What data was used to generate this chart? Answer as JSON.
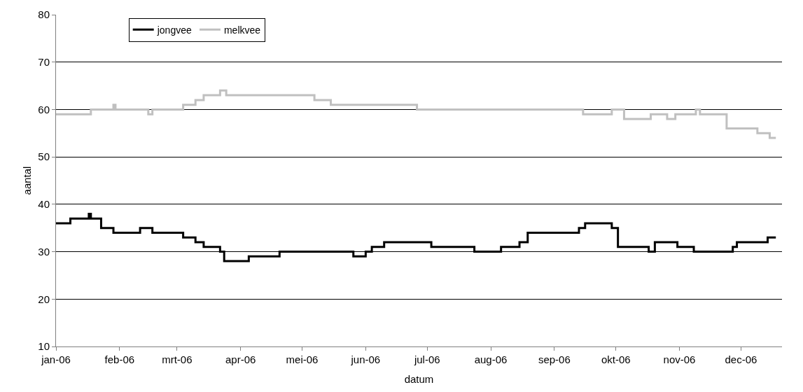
{
  "chart_data": {
    "type": "step",
    "xlabel": "datum",
    "ylabel": "aantal",
    "xlim": [
      "2006-01-01",
      "2006-12-21"
    ],
    "xticks": [
      {
        "value": "2006-01-01",
        "label": "jan-06"
      },
      {
        "value": "2006-02-01",
        "label": "feb-06"
      },
      {
        "value": "2006-03-01",
        "label": "mrt-06"
      },
      {
        "value": "2006-04-01",
        "label": "apr-06"
      },
      {
        "value": "2006-05-01",
        "label": "mei-06"
      },
      {
        "value": "2006-06-01",
        "label": "jun-06"
      },
      {
        "value": "2006-07-01",
        "label": "jul-06"
      },
      {
        "value": "2006-08-01",
        "label": "aug-06"
      },
      {
        "value": "2006-09-01",
        "label": "sep-06"
      },
      {
        "value": "2006-10-01",
        "label": "okt-06"
      },
      {
        "value": "2006-11-01",
        "label": "nov-06"
      },
      {
        "value": "2006-12-01",
        "label": "dec-06"
      }
    ],
    "ylim": [
      10,
      80
    ],
    "yticks": [
      10,
      20,
      30,
      40,
      50,
      60,
      70,
      80
    ],
    "grid": "y",
    "legend": "top left",
    "marker": "none",
    "line_style": "solid",
    "series": [
      {
        "name": "jongvee",
        "color": "#000000",
        "x": [
          "2006-01-01",
          "2006-01-08",
          "2006-01-17",
          "2006-01-18",
          "2006-01-23",
          "2006-01-29",
          "2006-02-11",
          "2006-02-17",
          "2006-03-04",
          "2006-03-10",
          "2006-03-14",
          "2006-03-22",
          "2006-03-24",
          "2006-04-05",
          "2006-04-20",
          "2006-05-26",
          "2006-06-01",
          "2006-06-04",
          "2006-06-10",
          "2006-07-03",
          "2006-07-24",
          "2006-08-06",
          "2006-08-15",
          "2006-08-19",
          "2006-09-13",
          "2006-09-16",
          "2006-09-29",
          "2006-10-02",
          "2006-10-17",
          "2006-10-20",
          "2006-10-31",
          "2006-11-08",
          "2006-11-27",
          "2006-11-29",
          "2006-12-14",
          "2006-12-18"
        ],
        "values": [
          36,
          37,
          38,
          37,
          35,
          34,
          35,
          34,
          33,
          32,
          31,
          30,
          28,
          29,
          30,
          29,
          30,
          31,
          32,
          31,
          30,
          31,
          32,
          34,
          35,
          36,
          35,
          31,
          30,
          32,
          31,
          30,
          31,
          32,
          33,
          33
        ]
      },
      {
        "name": "melkvee",
        "color": "#c0c0c0",
        "x": [
          "2006-01-01",
          "2006-01-18",
          "2006-01-29",
          "2006-01-30",
          "2006-02-15",
          "2006-02-17",
          "2006-03-04",
          "2006-03-10",
          "2006-03-14",
          "2006-03-22",
          "2006-03-25",
          "2006-05-07",
          "2006-05-15",
          "2006-06-26",
          "2006-09-15",
          "2006-09-29",
          "2006-10-05",
          "2006-10-18",
          "2006-10-26",
          "2006-10-30",
          "2006-11-09",
          "2006-11-11",
          "2006-11-24",
          "2006-12-09",
          "2006-12-15",
          "2006-12-18"
        ],
        "values": [
          59,
          60,
          61,
          60,
          59,
          60,
          61,
          62,
          63,
          64,
          63,
          62,
          61,
          60,
          59,
          60,
          58,
          59,
          58,
          59,
          60,
          59,
          56,
          55,
          54,
          54
        ]
      }
    ]
  }
}
